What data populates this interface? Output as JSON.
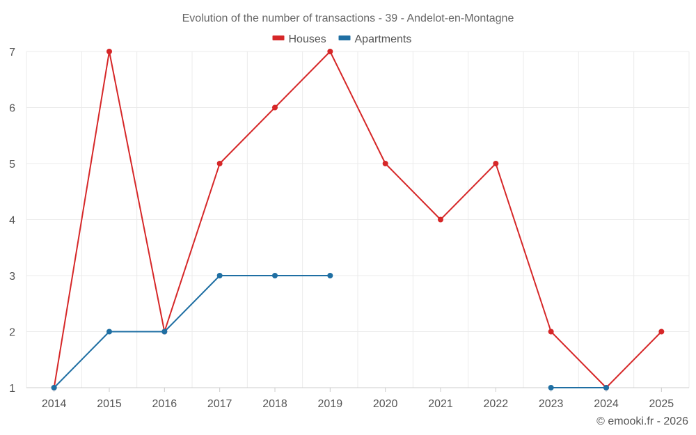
{
  "chart_data": {
    "type": "line",
    "title": "Evolution of the number of transactions - 39 - Andelot-en-Montagne",
    "categories": [
      "2014",
      "2015",
      "2016",
      "2017",
      "2018",
      "2019",
      "2020",
      "2021",
      "2022",
      "2023",
      "2024",
      "2025"
    ],
    "series": [
      {
        "name": "Houses",
        "color": "#d62728",
        "values": [
          1,
          7,
          2,
          5,
          6,
          7,
          5,
          4,
          5,
          2,
          1,
          2
        ]
      },
      {
        "name": "Apartments",
        "color": "#1f6fa3",
        "values": [
          1,
          2,
          2,
          3,
          3,
          3,
          null,
          null,
          null,
          1,
          1,
          null
        ]
      }
    ],
    "ylim": [
      1,
      7
    ],
    "yticks": [
      1,
      2,
      3,
      4,
      5,
      6,
      7
    ],
    "grid": true,
    "legend": "top-center",
    "xlabel": "",
    "ylabel": ""
  },
  "credit": "© emooki.fr - 2026"
}
